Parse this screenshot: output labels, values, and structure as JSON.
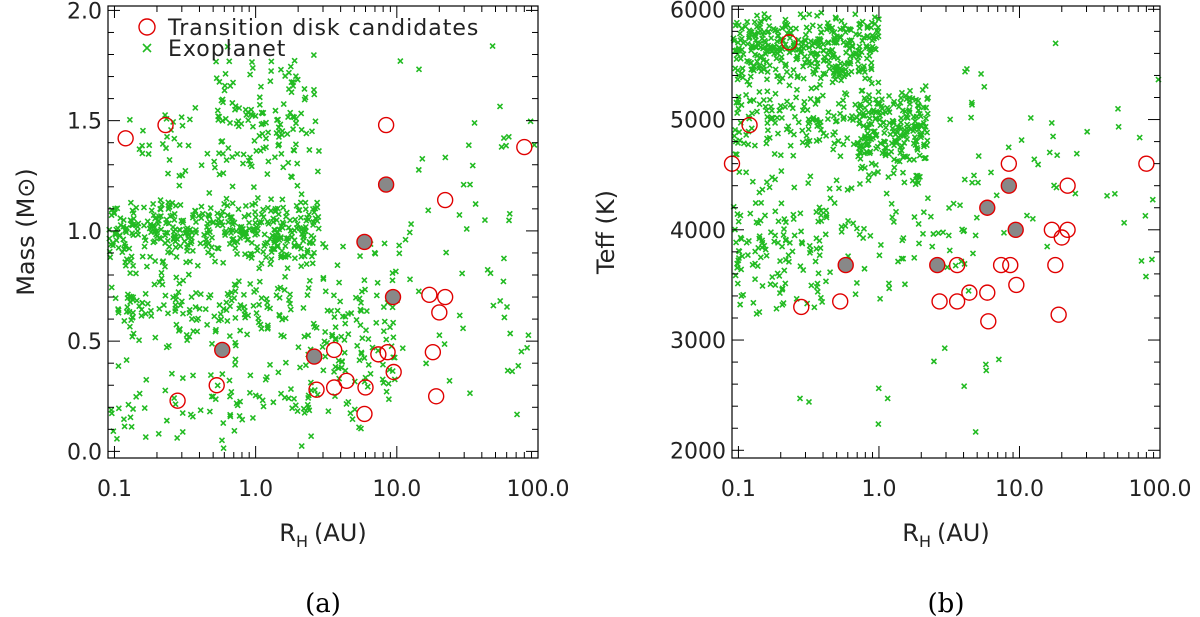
{
  "colors": {
    "exoplanet": "#22bb22",
    "candidate": "#e00000",
    "filled": "#888888"
  },
  "chart_data": [
    {
      "type": "scatter",
      "panel_label": "(a)",
      "xlabel_main": "R",
      "xlabel_sub": "H",
      "xlabel_unit": "(AU)",
      "ylabel_main": "Mass (M",
      "ylabel_sym": "⊙",
      "ylabel_close": ")",
      "xscale": "log",
      "xlim": [
        0.09,
        100
      ],
      "ylim": [
        -0.03,
        2.02
      ],
      "xticks": [
        0.1,
        1,
        10,
        100
      ],
      "xtick_labels": [
        "0.1",
        "1.0",
        "10.0",
        "100.0"
      ],
      "yticks": [
        0,
        0.5,
        1,
        1.5,
        2
      ],
      "ytick_labels": [
        "0.0",
        "0.5",
        "1.0",
        "1.5",
        "2.0"
      ],
      "legend": {
        "position": "top-left",
        "entries": [
          "Transition disk candidates",
          "Exoplanet"
        ]
      },
      "candidates": [
        [
          0.12,
          1.42
        ],
        [
          0.23,
          1.48
        ],
        [
          0.28,
          0.23
        ],
        [
          0.53,
          0.3
        ],
        [
          0.58,
          0.46
        ],
        [
          2.6,
          0.43
        ],
        [
          2.7,
          0.28
        ],
        [
          3.6,
          0.29
        ],
        [
          3.6,
          0.46
        ],
        [
          4.4,
          0.32
        ],
        [
          5.9,
          0.95
        ],
        [
          5.9,
          0.17
        ],
        [
          6.0,
          0.29
        ],
        [
          7.4,
          0.44
        ],
        [
          8.4,
          1.48
        ],
        [
          8.4,
          1.21
        ],
        [
          8.6,
          0.45
        ],
        [
          9.4,
          0.7
        ],
        [
          9.5,
          0.36
        ],
        [
          17.0,
          0.71
        ],
        [
          18.0,
          0.45
        ],
        [
          19.0,
          0.25
        ],
        [
          20.0,
          0.63
        ],
        [
          22.0,
          1.14
        ],
        [
          22.0,
          0.7
        ],
        [
          80.0,
          1.38
        ]
      ],
      "filled_candidates": [
        [
          0.58,
          0.46
        ],
        [
          2.6,
          0.43
        ],
        [
          5.9,
          0.95
        ],
        [
          8.4,
          1.21
        ],
        [
          9.4,
          0.7
        ]
      ],
      "exoplanet_clusters": [
        {
          "xlog": [
            -1.05,
            0.45
          ],
          "y": [
            0.82,
            1.18
          ],
          "n": 420
        },
        {
          "xlog": [
            -1.05,
            0.25
          ],
          "y": [
            0.45,
            0.85
          ],
          "n": 160
        },
        {
          "xlog": [
            -1.05,
            0.55
          ],
          "y": [
            0.0,
            0.45
          ],
          "n": 90
        },
        {
          "xlog": [
            -0.3,
            0.45
          ],
          "y": [
            1.18,
            1.85
          ],
          "n": 110
        },
        {
          "xlog": [
            -0.9,
            0.2
          ],
          "y": [
            1.15,
            1.6
          ],
          "n": 60
        },
        {
          "xlog": [
            0.3,
            1.0
          ],
          "y": [
            0.05,
            1.0
          ],
          "n": 130
        },
        {
          "xlog": [
            1.0,
            2.0
          ],
          "y": [
            0.0,
            2.0
          ],
          "n": 60
        }
      ]
    },
    {
      "type": "scatter",
      "panel_label": "(b)",
      "xlabel_main": "R",
      "xlabel_sub": "H",
      "xlabel_unit": "(AU)",
      "ylabel_main": "Teff (K)",
      "xscale": "log",
      "xlim": [
        0.09,
        100
      ],
      "ylim": [
        1930,
        6030
      ],
      "xticks": [
        0.1,
        1,
        10,
        100
      ],
      "xtick_labels": [
        "0.1",
        "1.0",
        "10.0",
        "100.0"
      ],
      "yticks": [
        2000,
        3000,
        4000,
        5000,
        6000
      ],
      "ytick_labels": [
        "2000",
        "3000",
        "4000",
        "5000",
        "6000"
      ],
      "candidates": [
        [
          0.09,
          4600
        ],
        [
          0.12,
          4950
        ],
        [
          0.23,
          5700
        ],
        [
          0.28,
          3300
        ],
        [
          0.53,
          3350
        ],
        [
          0.58,
          3680
        ],
        [
          2.6,
          3680
        ],
        [
          2.7,
          3350
        ],
        [
          3.6,
          3680
        ],
        [
          3.6,
          3350
        ],
        [
          4.4,
          3430
        ],
        [
          5.9,
          4200
        ],
        [
          5.9,
          3430
        ],
        [
          6.0,
          3170
        ],
        [
          7.4,
          3680
        ],
        [
          8.4,
          4600
        ],
        [
          8.4,
          4400
        ],
        [
          8.6,
          3680
        ],
        [
          9.4,
          4000
        ],
        [
          9.5,
          3500
        ],
        [
          17.0,
          4000
        ],
        [
          18.0,
          3680
        ],
        [
          19.0,
          3230
        ],
        [
          20.0,
          3930
        ],
        [
          22.0,
          4400
        ],
        [
          22.0,
          4000
        ],
        [
          80.0,
          4600
        ]
      ],
      "filled_candidates": [
        [
          0.58,
          3680
        ],
        [
          2.6,
          3680
        ],
        [
          5.9,
          4200
        ],
        [
          8.4,
          4400
        ],
        [
          9.4,
          4000
        ]
      ],
      "exoplanet_clusters": [
        {
          "xlog": [
            -1.05,
            0.0
          ],
          "y": [
            5300,
            6000
          ],
          "n": 380
        },
        {
          "xlog": [
            -1.05,
            0.35
          ],
          "y": [
            4600,
            5400
          ],
          "n": 220
        },
        {
          "xlog": [
            -0.15,
            0.35
          ],
          "y": [
            4300,
            5400
          ],
          "n": 160
        },
        {
          "xlog": [
            -1.05,
            -0.4
          ],
          "y": [
            3100,
            4600
          ],
          "n": 130
        },
        {
          "xlog": [
            -0.45,
            0.7
          ],
          "y": [
            3300,
            4600
          ],
          "n": 80
        },
        {
          "xlog": [
            0.5,
            1.3
          ],
          "y": [
            3700,
            6000
          ],
          "n": 30
        },
        {
          "xlog": [
            1.1,
            2.0
          ],
          "y": [
            3400,
            6000
          ],
          "n": 15
        },
        {
          "xlog": [
            -0.6,
            0.9
          ],
          "y": [
            2000,
            3000
          ],
          "n": 12
        }
      ]
    }
  ]
}
